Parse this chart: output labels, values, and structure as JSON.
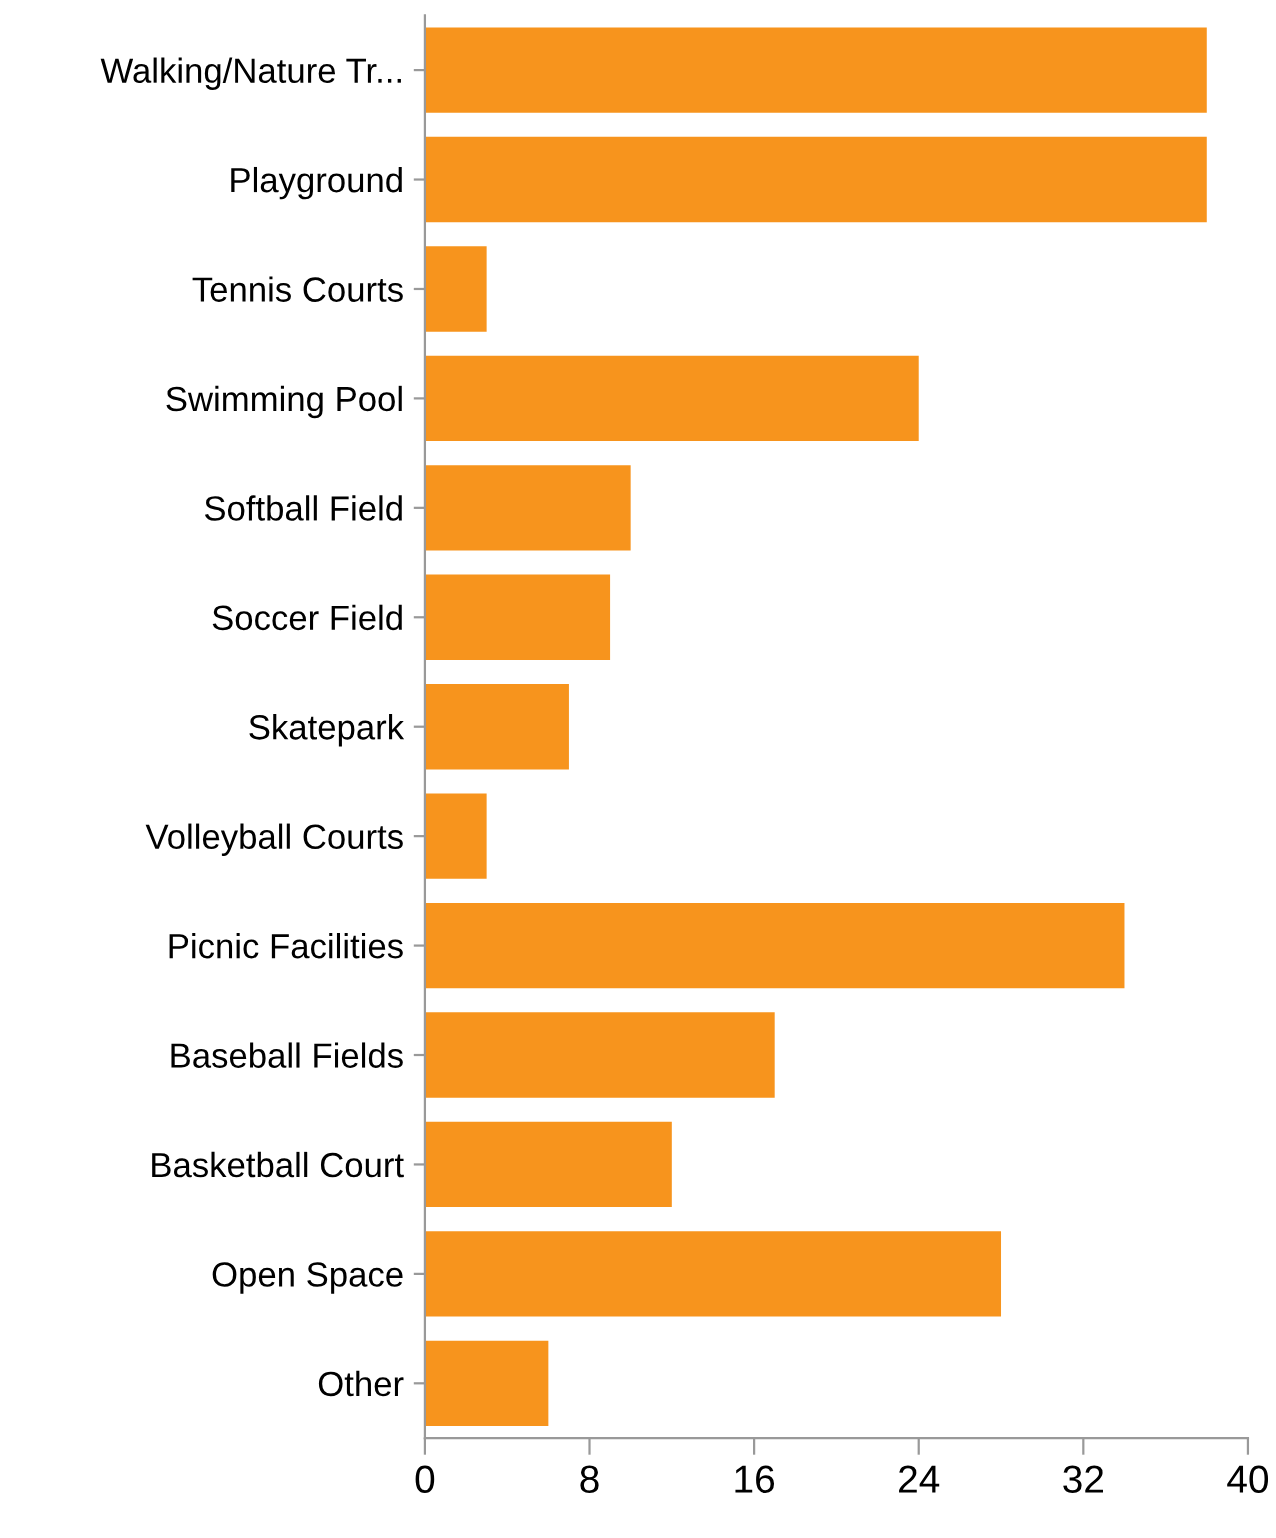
{
  "chart_data": {
    "type": "bar",
    "orientation": "horizontal",
    "categories": [
      "Walking/Nature Tr...",
      "Playground",
      "Tennis Courts",
      "Swimming Pool",
      "Softball Field",
      "Soccer Field",
      "Skatepark",
      "Volleyball Courts",
      "Picnic Facilities",
      "Baseball Fields",
      "Basketball Court",
      "Open Space",
      "Other"
    ],
    "values": [
      38,
      38,
      3,
      24,
      10,
      9,
      7,
      3,
      34,
      17,
      12,
      28,
      6
    ],
    "color": "#f7941d",
    "xlim": [
      0,
      40
    ],
    "xticks": [
      0,
      8,
      16,
      24,
      32,
      40
    ],
    "grid": false
  }
}
